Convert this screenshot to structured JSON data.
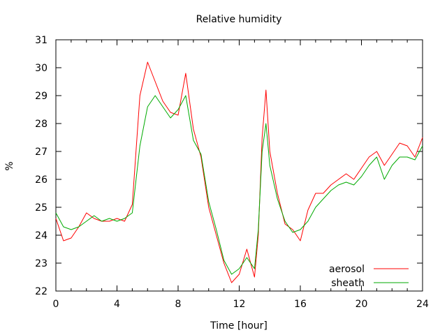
{
  "chart_data": {
    "type": "line",
    "title": "Relative humidity",
    "xlabel": "Time [hour]",
    "ylabel": "%",
    "xlim": [
      0,
      24
    ],
    "ylim": [
      22,
      31
    ],
    "xticks": [
      0,
      4,
      8,
      12,
      16,
      20,
      24
    ],
    "yticks": [
      22,
      23,
      24,
      25,
      26,
      27,
      28,
      29,
      30,
      31
    ],
    "grid": false,
    "legend_position": "bottom-right",
    "series": [
      {
        "name": "aerosol",
        "color": "#ff0000",
        "x": [
          0,
          0.5,
          1,
          1.5,
          2,
          2.5,
          3,
          3.5,
          4,
          4.5,
          5,
          5.5,
          6,
          6.5,
          7,
          7.5,
          8,
          8.5,
          9,
          9.5,
          10,
          10.5,
          11,
          11.5,
          12,
          12.5,
          13,
          13.25,
          13.5,
          13.75,
          14,
          14.5,
          15,
          15.5,
          16,
          16.5,
          17,
          17.5,
          18,
          18.5,
          19,
          19.5,
          20,
          20.5,
          21,
          21.5,
          22,
          22.5,
          23,
          23.5,
          24
        ],
        "values": [
          24.6,
          23.8,
          23.9,
          24.3,
          24.8,
          24.6,
          24.5,
          24.5,
          24.6,
          24.5,
          25.1,
          29.0,
          30.2,
          29.5,
          28.8,
          28.4,
          28.3,
          29.8,
          27.8,
          26.8,
          25.0,
          24.0,
          23.0,
          22.3,
          22.6,
          23.5,
          22.5,
          24.0,
          27.5,
          29.2,
          27.0,
          25.5,
          24.4,
          24.2,
          23.8,
          24.9,
          25.5,
          25.5,
          25.8,
          26.0,
          26.2,
          26.0,
          26.4,
          26.8,
          27.0,
          26.5,
          26.9,
          27.3,
          27.2,
          26.8,
          27.5
        ]
      },
      {
        "name": "sheath",
        "color": "#00aa00",
        "x": [
          0,
          0.5,
          1,
          1.5,
          2,
          2.5,
          3,
          3.5,
          4,
          4.5,
          5,
          5.5,
          6,
          6.5,
          7,
          7.5,
          8,
          8.5,
          9,
          9.5,
          10,
          10.5,
          11,
          11.5,
          12,
          12.5,
          13,
          13.25,
          13.5,
          13.75,
          14,
          14.5,
          15,
          15.5,
          16,
          16.5,
          17,
          17.5,
          18,
          18.5,
          19,
          19.5,
          20,
          20.5,
          21,
          21.5,
          22,
          22.5,
          23,
          23.5,
          24
        ],
        "values": [
          24.8,
          24.3,
          24.2,
          24.3,
          24.5,
          24.7,
          24.5,
          24.6,
          24.5,
          24.6,
          24.8,
          27.2,
          28.6,
          29.0,
          28.6,
          28.2,
          28.5,
          29.0,
          27.4,
          26.9,
          25.2,
          24.2,
          23.1,
          22.6,
          22.8,
          23.2,
          22.8,
          24.2,
          27.0,
          28.0,
          26.5,
          25.3,
          24.5,
          24.1,
          24.2,
          24.5,
          25.0,
          25.3,
          25.6,
          25.8,
          25.9,
          25.8,
          26.1,
          26.5,
          26.8,
          26.0,
          26.5,
          26.8,
          26.8,
          26.7,
          27.2
        ]
      }
    ]
  }
}
